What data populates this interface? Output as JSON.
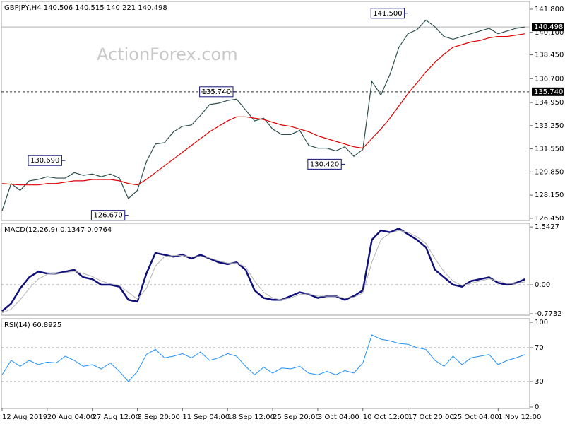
{
  "watermark": "ActionForex.com",
  "chart_data": [
    {
      "type": "line",
      "title": "GBPJPY,H4  140.506 140.515 140.221 140.498",
      "xlim": [
        0,
        58.5
      ],
      "ylim": [
        126.29,
        142.37
      ],
      "yticks": [
        {
          "value": 141.8,
          "label": "141.800"
        },
        {
          "value": 140.1,
          "label": "140.100"
        },
        {
          "value": 138.45,
          "label": "138.450"
        },
        {
          "value": 136.7,
          "label": "136.700"
        },
        {
          "value": 134.95,
          "label": "134.950"
        },
        {
          "value": 133.25,
          "label": "133.250"
        },
        {
          "value": 131.55,
          "label": "131.550"
        },
        {
          "value": 129.85,
          "label": "129.850"
        },
        {
          "value": 128.15,
          "label": "128.150"
        },
        {
          "value": 126.45,
          "label": "126.450"
        }
      ],
      "series": [
        {
          "color": "#2f4f4f",
          "width": 1.2,
          "values": [
            127.0,
            129.0,
            128.5,
            129.2,
            129.3,
            129.5,
            129.4,
            129.4,
            129.8,
            129.6,
            129.7,
            129.5,
            129.7,
            129.4,
            127.9,
            128.5,
            130.6,
            131.9,
            132.0,
            132.8,
            133.2,
            133.3,
            134.0,
            134.8,
            134.9,
            135.1,
            135.2,
            134.4,
            133.6,
            133.8,
            133.0,
            132.6,
            132.6,
            132.9,
            131.8,
            131.6,
            131.6,
            131.4,
            131.7,
            131.0,
            131.5,
            136.5,
            135.5,
            137.0,
            139.0,
            140.0,
            140.3,
            141.0,
            140.5,
            139.8,
            139.6,
            139.8,
            140.0,
            140.2,
            140.4,
            140.0,
            140.2,
            140.4,
            140.5
          ]
        },
        {
          "color": "#e00000",
          "width": 1.2,
          "values": [
            129.0,
            128.95,
            128.9,
            128.9,
            128.9,
            129.0,
            129.0,
            129.1,
            129.2,
            129.2,
            129.3,
            129.3,
            129.3,
            129.2,
            129.0,
            128.9,
            129.3,
            129.8,
            130.3,
            130.8,
            131.3,
            131.8,
            132.3,
            132.8,
            133.2,
            133.6,
            133.9,
            133.9,
            133.8,
            133.7,
            133.5,
            133.3,
            133.2,
            133.0,
            132.8,
            132.5,
            132.3,
            132.1,
            131.9,
            131.7,
            131.6,
            132.3,
            133.0,
            133.8,
            134.7,
            135.6,
            136.4,
            137.2,
            137.9,
            138.5,
            139.0,
            139.2,
            139.4,
            139.5,
            139.7,
            139.8,
            139.8,
            139.9,
            140.0
          ]
        }
      ],
      "hlines": [
        {
          "value": 140.498,
          "label": "140.498",
          "line_style": "solid"
        },
        {
          "value": 135.74,
          "label": "135.740",
          "line_style": "dashed"
        }
      ],
      "annotations": [
        {
          "label": "141.500",
          "value": 141.5,
          "x": 45
        },
        {
          "label": "135.740",
          "value": 135.74,
          "x": 26
        },
        {
          "label": "130.690",
          "value": 130.69,
          "x": 7
        },
        {
          "label": "130.420",
          "value": 130.42,
          "x": 38
        },
        {
          "label": "126.670",
          "value": 126.67,
          "x": 14
        }
      ]
    },
    {
      "type": "line",
      "title": "MACD(12,26,9) 0.1347 0.0764",
      "xlim": [
        0,
        58.5
      ],
      "ylim": [
        -0.81,
        1.64
      ],
      "yticks": [
        1.5427,
        {
          "value": 0,
          "label": "0.00"
        },
        -0.7732
      ],
      "levels": [
        0
      ],
      "series": [
        {
          "color": "#10107a",
          "width": 2.5,
          "values": [
            -0.7,
            -0.5,
            -0.1,
            0.2,
            0.35,
            0.3,
            0.3,
            0.35,
            0.4,
            0.2,
            0.15,
            0.0,
            0.0,
            -0.05,
            -0.4,
            -0.45,
            0.3,
            0.85,
            0.8,
            0.75,
            0.8,
            0.7,
            0.8,
            0.7,
            0.6,
            0.55,
            0.6,
            0.4,
            -0.15,
            -0.35,
            -0.4,
            -0.4,
            -0.3,
            -0.2,
            -0.25,
            -0.35,
            -0.3,
            -0.3,
            -0.4,
            -0.3,
            -0.15,
            1.2,
            1.45,
            1.4,
            1.5,
            1.35,
            1.2,
            1.0,
            0.4,
            0.2,
            0.0,
            -0.05,
            0.1,
            0.15,
            0.2,
            0.05,
            0.0,
            0.05,
            0.15
          ]
        },
        {
          "color": "#b4b4b4",
          "width": 1,
          "values": [
            -0.75,
            -0.65,
            -0.4,
            -0.1,
            0.15,
            0.28,
            0.3,
            0.32,
            0.36,
            0.3,
            0.22,
            0.1,
            0.03,
            -0.02,
            -0.2,
            -0.38,
            -0.1,
            0.5,
            0.75,
            0.78,
            0.78,
            0.74,
            0.76,
            0.72,
            0.64,
            0.58,
            0.58,
            0.48,
            0.1,
            -0.2,
            -0.35,
            -0.4,
            -0.35,
            -0.26,
            -0.24,
            -0.3,
            -0.3,
            -0.3,
            -0.36,
            -0.33,
            -0.22,
            0.6,
            1.2,
            1.38,
            1.45,
            1.4,
            1.28,
            1.1,
            0.7,
            0.35,
            0.1,
            -0.02,
            0.04,
            0.1,
            0.16,
            0.1,
            0.03,
            0.04,
            0.08
          ]
        }
      ]
    },
    {
      "type": "line",
      "title": "RSI(14) 60.8925",
      "xlim": [
        0,
        58.5
      ],
      "ylim": [
        -1.7,
        104.2
      ],
      "yticks": [
        100,
        70,
        30,
        0
      ],
      "levels": [
        70,
        30
      ],
      "series": [
        {
          "color": "#1e90ff",
          "width": 1,
          "values": [
            38,
            55,
            48,
            55,
            50,
            53,
            52,
            60,
            55,
            48,
            50,
            45,
            52,
            42,
            30,
            42,
            62,
            68,
            58,
            60,
            63,
            58,
            65,
            55,
            58,
            63,
            60,
            48,
            38,
            47,
            40,
            46,
            45,
            48,
            40,
            38,
            42,
            38,
            43,
            40,
            52,
            85,
            80,
            78,
            75,
            74,
            70,
            68,
            55,
            48,
            60,
            50,
            58,
            60,
            62,
            50,
            55,
            58,
            62
          ]
        }
      ],
      "xticks": [
        {
          "value": 0,
          "label": "12 Aug 2019"
        },
        {
          "value": 5,
          "label": "20 Aug 04:00"
        },
        {
          "value": 10,
          "label": "27 Aug 12:00"
        },
        {
          "value": 15,
          "label": "3 Sep 20:00"
        },
        {
          "value": 20,
          "label": "11 Sep 04:00"
        },
        {
          "value": 25,
          "label": "18 Sep 12:00"
        },
        {
          "value": 30,
          "label": "25 Sep 20:00"
        },
        {
          "value": 35,
          "label": "3 Oct 04:00"
        },
        {
          "value": 40,
          "label": "10 Oct 12:00"
        },
        {
          "value": 45,
          "label": "17 Oct 20:00"
        },
        {
          "value": 50,
          "label": "25 Oct 04:00"
        },
        {
          "value": 55,
          "label": "1 Nov 12:00"
        }
      ]
    }
  ]
}
